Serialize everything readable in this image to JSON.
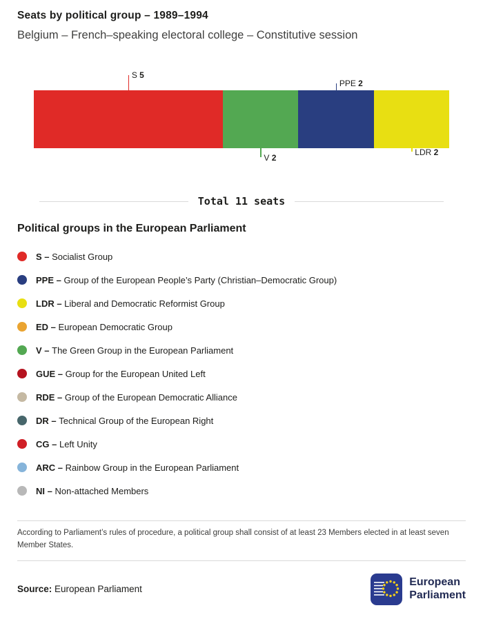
{
  "header": {
    "title": "Seats by political group – 1989–1994",
    "subtitle": "Belgium – French–speaking electoral college – Constitutive session"
  },
  "chart_data": {
    "type": "bar",
    "stacked": true,
    "orientation": "horizontal",
    "total_seats": 11,
    "total_label": "Total 11 seats",
    "segments": [
      {
        "code": "S",
        "seats": 5,
        "color": "#e02a27",
        "label_position": "top",
        "tick_length": 22
      },
      {
        "code": "V",
        "seats": 2,
        "color": "#53a852",
        "label_position": "bottom",
        "tick_length": 13
      },
      {
        "code": "PPE",
        "seats": 2,
        "color": "#293e80",
        "label_position": "top",
        "tick_length": 10
      },
      {
        "code": "LDR",
        "seats": 2,
        "color": "#e8df12",
        "label_position": "bottom",
        "tick_length": 5
      }
    ]
  },
  "legend": {
    "heading": "Political groups in the European Parliament",
    "items": [
      {
        "code": "S",
        "name": "Socialist Group",
        "color": "#e02a27"
      },
      {
        "code": "PPE",
        "name": "Group of the European People’s Party (Christian–Democratic Group)",
        "color": "#293e80"
      },
      {
        "code": "LDR",
        "name": "Liberal and Democratic Reformist Group",
        "color": "#e8df12"
      },
      {
        "code": "ED",
        "name": "European Democratic Group",
        "color": "#eaa431"
      },
      {
        "code": "V",
        "name": "The Green Group in the European Parliament",
        "color": "#53a852"
      },
      {
        "code": "GUE",
        "name": "Group for the European United Left",
        "color": "#b5131f"
      },
      {
        "code": "RDE",
        "name": "Group of the European Democratic Alliance",
        "color": "#c5b9a3"
      },
      {
        "code": "DR",
        "name": "Technical Group of the European Right",
        "color": "#47666b"
      },
      {
        "code": "CG",
        "name": "Left Unity",
        "color": "#d01f26"
      },
      {
        "code": "ARC",
        "name": "Rainbow Group in the European Parliament",
        "color": "#86b4da"
      },
      {
        "code": "NI",
        "name": "Non-attached Members",
        "color": "#b8b8b8"
      }
    ]
  },
  "footnote": "According to Parliament’s rules of procedure, a political group shall consist of at least 23 Members elected in at least seven Member States.",
  "source": {
    "label": "Source:",
    "value": "European Parliament"
  },
  "logo": {
    "line1": "European",
    "line2": "Parliament"
  }
}
